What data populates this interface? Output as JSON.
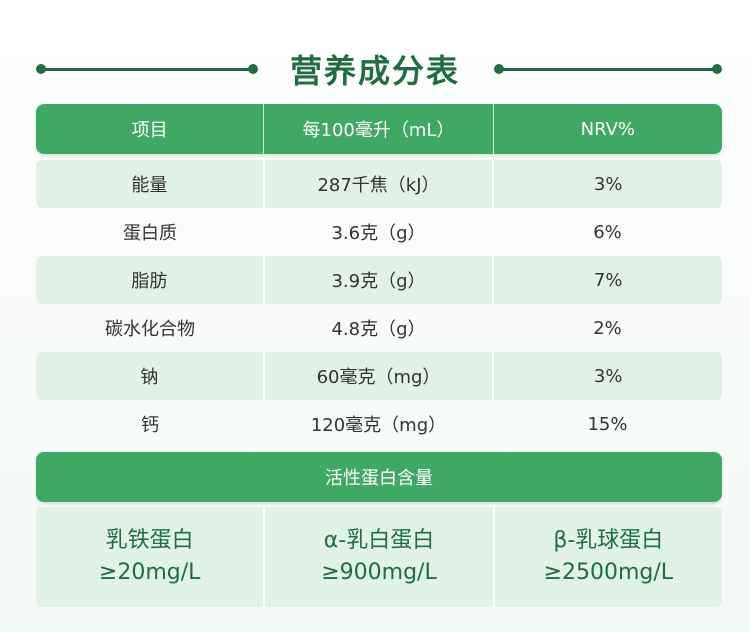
{
  "title": "营养成分表",
  "table": {
    "headers": [
      "项目",
      "每100毫升（mL）",
      "NRV%"
    ],
    "rows": [
      {
        "item": "能量",
        "amount": "287千焦（kJ）",
        "nrv": "3%"
      },
      {
        "item": "蛋白质",
        "amount": "3.6克（g）",
        "nrv": "6%"
      },
      {
        "item": "脂肪",
        "amount": "3.9克（g）",
        "nrv": "7%"
      },
      {
        "item": "碳水化合物",
        "amount": "4.8克（g）",
        "nrv": "2%"
      },
      {
        "item": "钠",
        "amount": "60毫克（mg）",
        "nrv": "3%"
      },
      {
        "item": "钙",
        "amount": "120毫克（mg）",
        "nrv": "15%"
      }
    ]
  },
  "active_protein": {
    "title": "活性蛋白含量",
    "items": [
      {
        "name": "乳铁蛋白",
        "value": "≥20mg/L"
      },
      {
        "name": "α-乳白蛋白",
        "value": "≥900mg/L"
      },
      {
        "name": "β-乳球蛋白",
        "value": "≥2500mg/L"
      }
    ]
  },
  "colors": {
    "brand_green": "#3fa862",
    "title_green": "#1e6e42",
    "row_shade": "#e1f2e7"
  }
}
